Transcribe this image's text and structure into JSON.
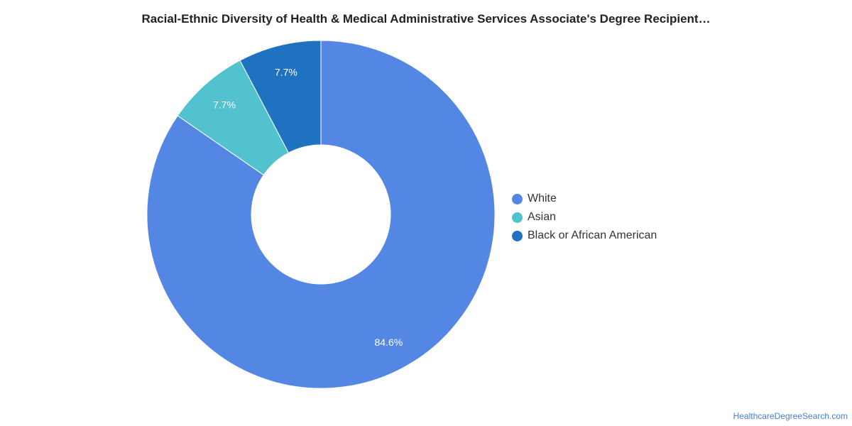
{
  "chart_data": {
    "type": "pie",
    "variant": "donut",
    "title": "Racial-Ethnic Diversity of Health & Medical Administrative Services Associate's Degree Recipient…",
    "slices": [
      {
        "name": "White",
        "value": 84.6,
        "label": "84.6%",
        "color": "#5486e3"
      },
      {
        "name": "Asian",
        "value": 7.7,
        "label": "7.7%",
        "color": "#52c2cf"
      },
      {
        "name": "Black or African American",
        "value": 7.7,
        "label": "7.7%",
        "color": "#1f72bf"
      }
    ],
    "legend_position": "right"
  },
  "credit": "HealthcareDegreeSearch.com"
}
